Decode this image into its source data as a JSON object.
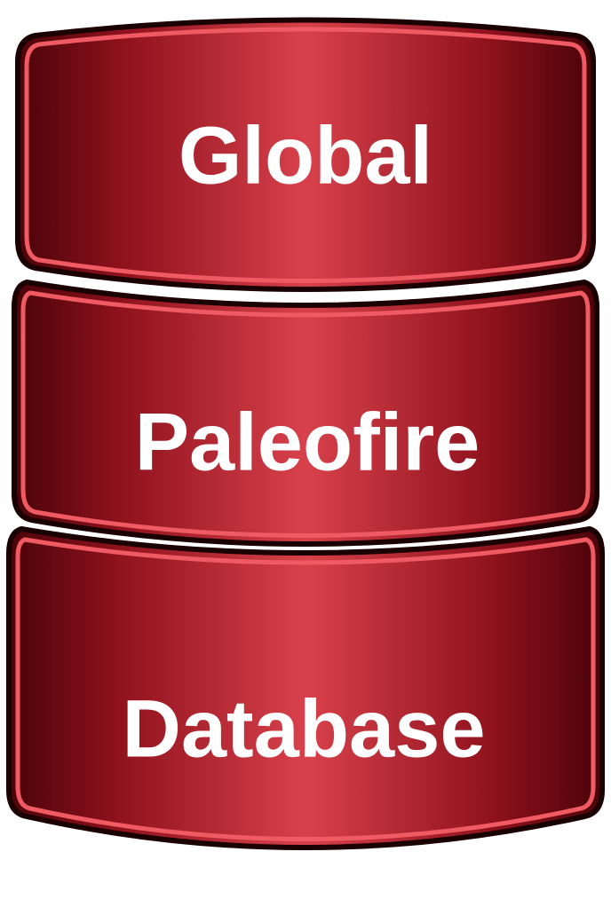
{
  "logo": {
    "segments": [
      {
        "label": "Global"
      },
      {
        "label": "Paleofire"
      },
      {
        "label": "Database"
      }
    ],
    "colors": {
      "dark": "#5e050c",
      "mid": "#b01c2a",
      "light": "#e0474f",
      "rim": "#f05a62",
      "outline": "#1a0000"
    }
  }
}
